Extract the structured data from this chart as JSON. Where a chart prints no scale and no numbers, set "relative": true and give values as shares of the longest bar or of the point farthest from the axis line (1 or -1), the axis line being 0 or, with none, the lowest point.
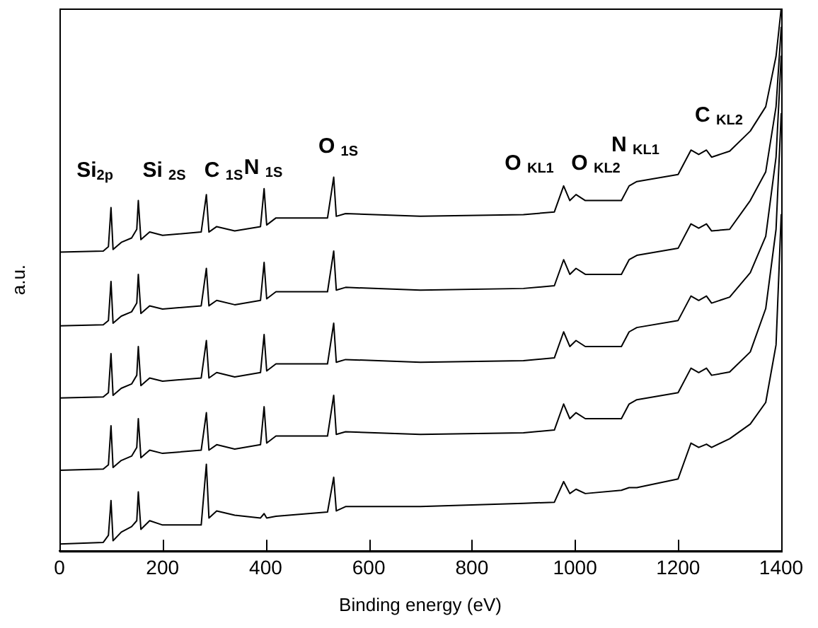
{
  "chart_data": {
    "type": "line",
    "relative": true,
    "xlabel": "Binding energy (eV)",
    "ylabel": "a.u.",
    "xlim": [
      0,
      1400
    ],
    "xticks": [
      0,
      200,
      400,
      600,
      800,
      1000,
      1200,
      1400
    ],
    "legend": false,
    "grid": false,
    "marker": "none",
    "line_style": "solid",
    "x": [
      0,
      85,
      95,
      100,
      104,
      120,
      140,
      150,
      153,
      158,
      175,
      200,
      275,
      285,
      290,
      305,
      340,
      390,
      397,
      402,
      420,
      520,
      532,
      537,
      555,
      700,
      900,
      960,
      978,
      990,
      1002,
      1020,
      1090,
      1105,
      1120,
      1200,
      1225,
      1240,
      1255,
      1265,
      1300,
      1340,
      1370,
      1390,
      1400
    ],
    "series": [
      {
        "color": "#000000",
        "values": [
          0.551,
          0.553,
          0.561,
          0.633,
          0.556,
          0.569,
          0.577,
          0.593,
          0.646,
          0.574,
          0.588,
          0.582,
          0.588,
          0.657,
          0.588,
          0.598,
          0.59,
          0.598,
          0.668,
          0.601,
          0.614,
          0.614,
          0.689,
          0.617,
          0.622,
          0.617,
          0.62,
          0.625,
          0.673,
          0.646,
          0.657,
          0.646,
          0.646,
          0.673,
          0.681,
          0.694,
          0.739,
          0.731,
          0.739,
          0.726,
          0.737,
          0.774,
          0.819,
          0.912,
          1
        ]
      },
      {
        "color": "#000000",
        "values": [
          0.415,
          0.417,
          0.425,
          0.497,
          0.42,
          0.433,
          0.441,
          0.457,
          0.51,
          0.438,
          0.452,
          0.446,
          0.452,
          0.521,
          0.452,
          0.462,
          0.454,
          0.462,
          0.532,
          0.465,
          0.478,
          0.478,
          0.553,
          0.481,
          0.486,
          0.481,
          0.484,
          0.489,
          0.537,
          0.51,
          0.521,
          0.51,
          0.51,
          0.537,
          0.545,
          0.558,
          0.603,
          0.595,
          0.603,
          0.59,
          0.593,
          0.646,
          0.699,
          0.819,
          0.965
        ]
      },
      {
        "color": "#000000",
        "values": [
          0.282,
          0.284,
          0.292,
          0.364,
          0.287,
          0.3,
          0.308,
          0.324,
          0.377,
          0.305,
          0.319,
          0.313,
          0.319,
          0.388,
          0.319,
          0.329,
          0.321,
          0.329,
          0.399,
          0.332,
          0.345,
          0.345,
          0.42,
          0.348,
          0.353,
          0.348,
          0.351,
          0.356,
          0.404,
          0.377,
          0.388,
          0.377,
          0.377,
          0.404,
          0.412,
          0.425,
          0.47,
          0.462,
          0.47,
          0.457,
          0.468,
          0.513,
          0.58,
          0.726,
          0.912
        ]
      },
      {
        "color": "#000000",
        "values": [
          0.149,
          0.151,
          0.159,
          0.231,
          0.154,
          0.167,
          0.175,
          0.191,
          0.244,
          0.172,
          0.186,
          0.18,
          0.186,
          0.255,
          0.186,
          0.196,
          0.188,
          0.196,
          0.266,
          0.199,
          0.212,
          0.212,
          0.287,
          0.215,
          0.22,
          0.215,
          0.218,
          0.223,
          0.271,
          0.244,
          0.255,
          0.244,
          0.244,
          0.271,
          0.279,
          0.292,
          0.337,
          0.329,
          0.337,
          0.324,
          0.33,
          0.367,
          0.447,
          0.593,
          0.806
        ]
      },
      {
        "color": "#000000",
        "values": [
          0.013,
          0.016,
          0.029,
          0.093,
          0.019,
          0.035,
          0.045,
          0.056,
          0.109,
          0.04,
          0.056,
          0.048,
          0.048,
          0.16,
          0.061,
          0.074,
          0.066,
          0.061,
          0.069,
          0.061,
          0.064,
          0.072,
          0.136,
          0.074,
          0.082,
          0.082,
          0.088,
          0.09,
          0.128,
          0.106,
          0.114,
          0.106,
          0.112,
          0.117,
          0.117,
          0.133,
          0.199,
          0.191,
          0.197,
          0.191,
          0.207,
          0.234,
          0.274,
          0.38,
          0.62
        ]
      }
    ],
    "annotations": [
      "Si$_{2p}$",
      "Si $_{2S}$",
      "C $_{1S}$",
      "N $_{1S}$",
      "O $_{1S}$",
      "O $_{KL1}$",
      "O $_{KL2}$",
      "N $_{KL1}$",
      "C $_{KL2}$"
    ]
  }
}
